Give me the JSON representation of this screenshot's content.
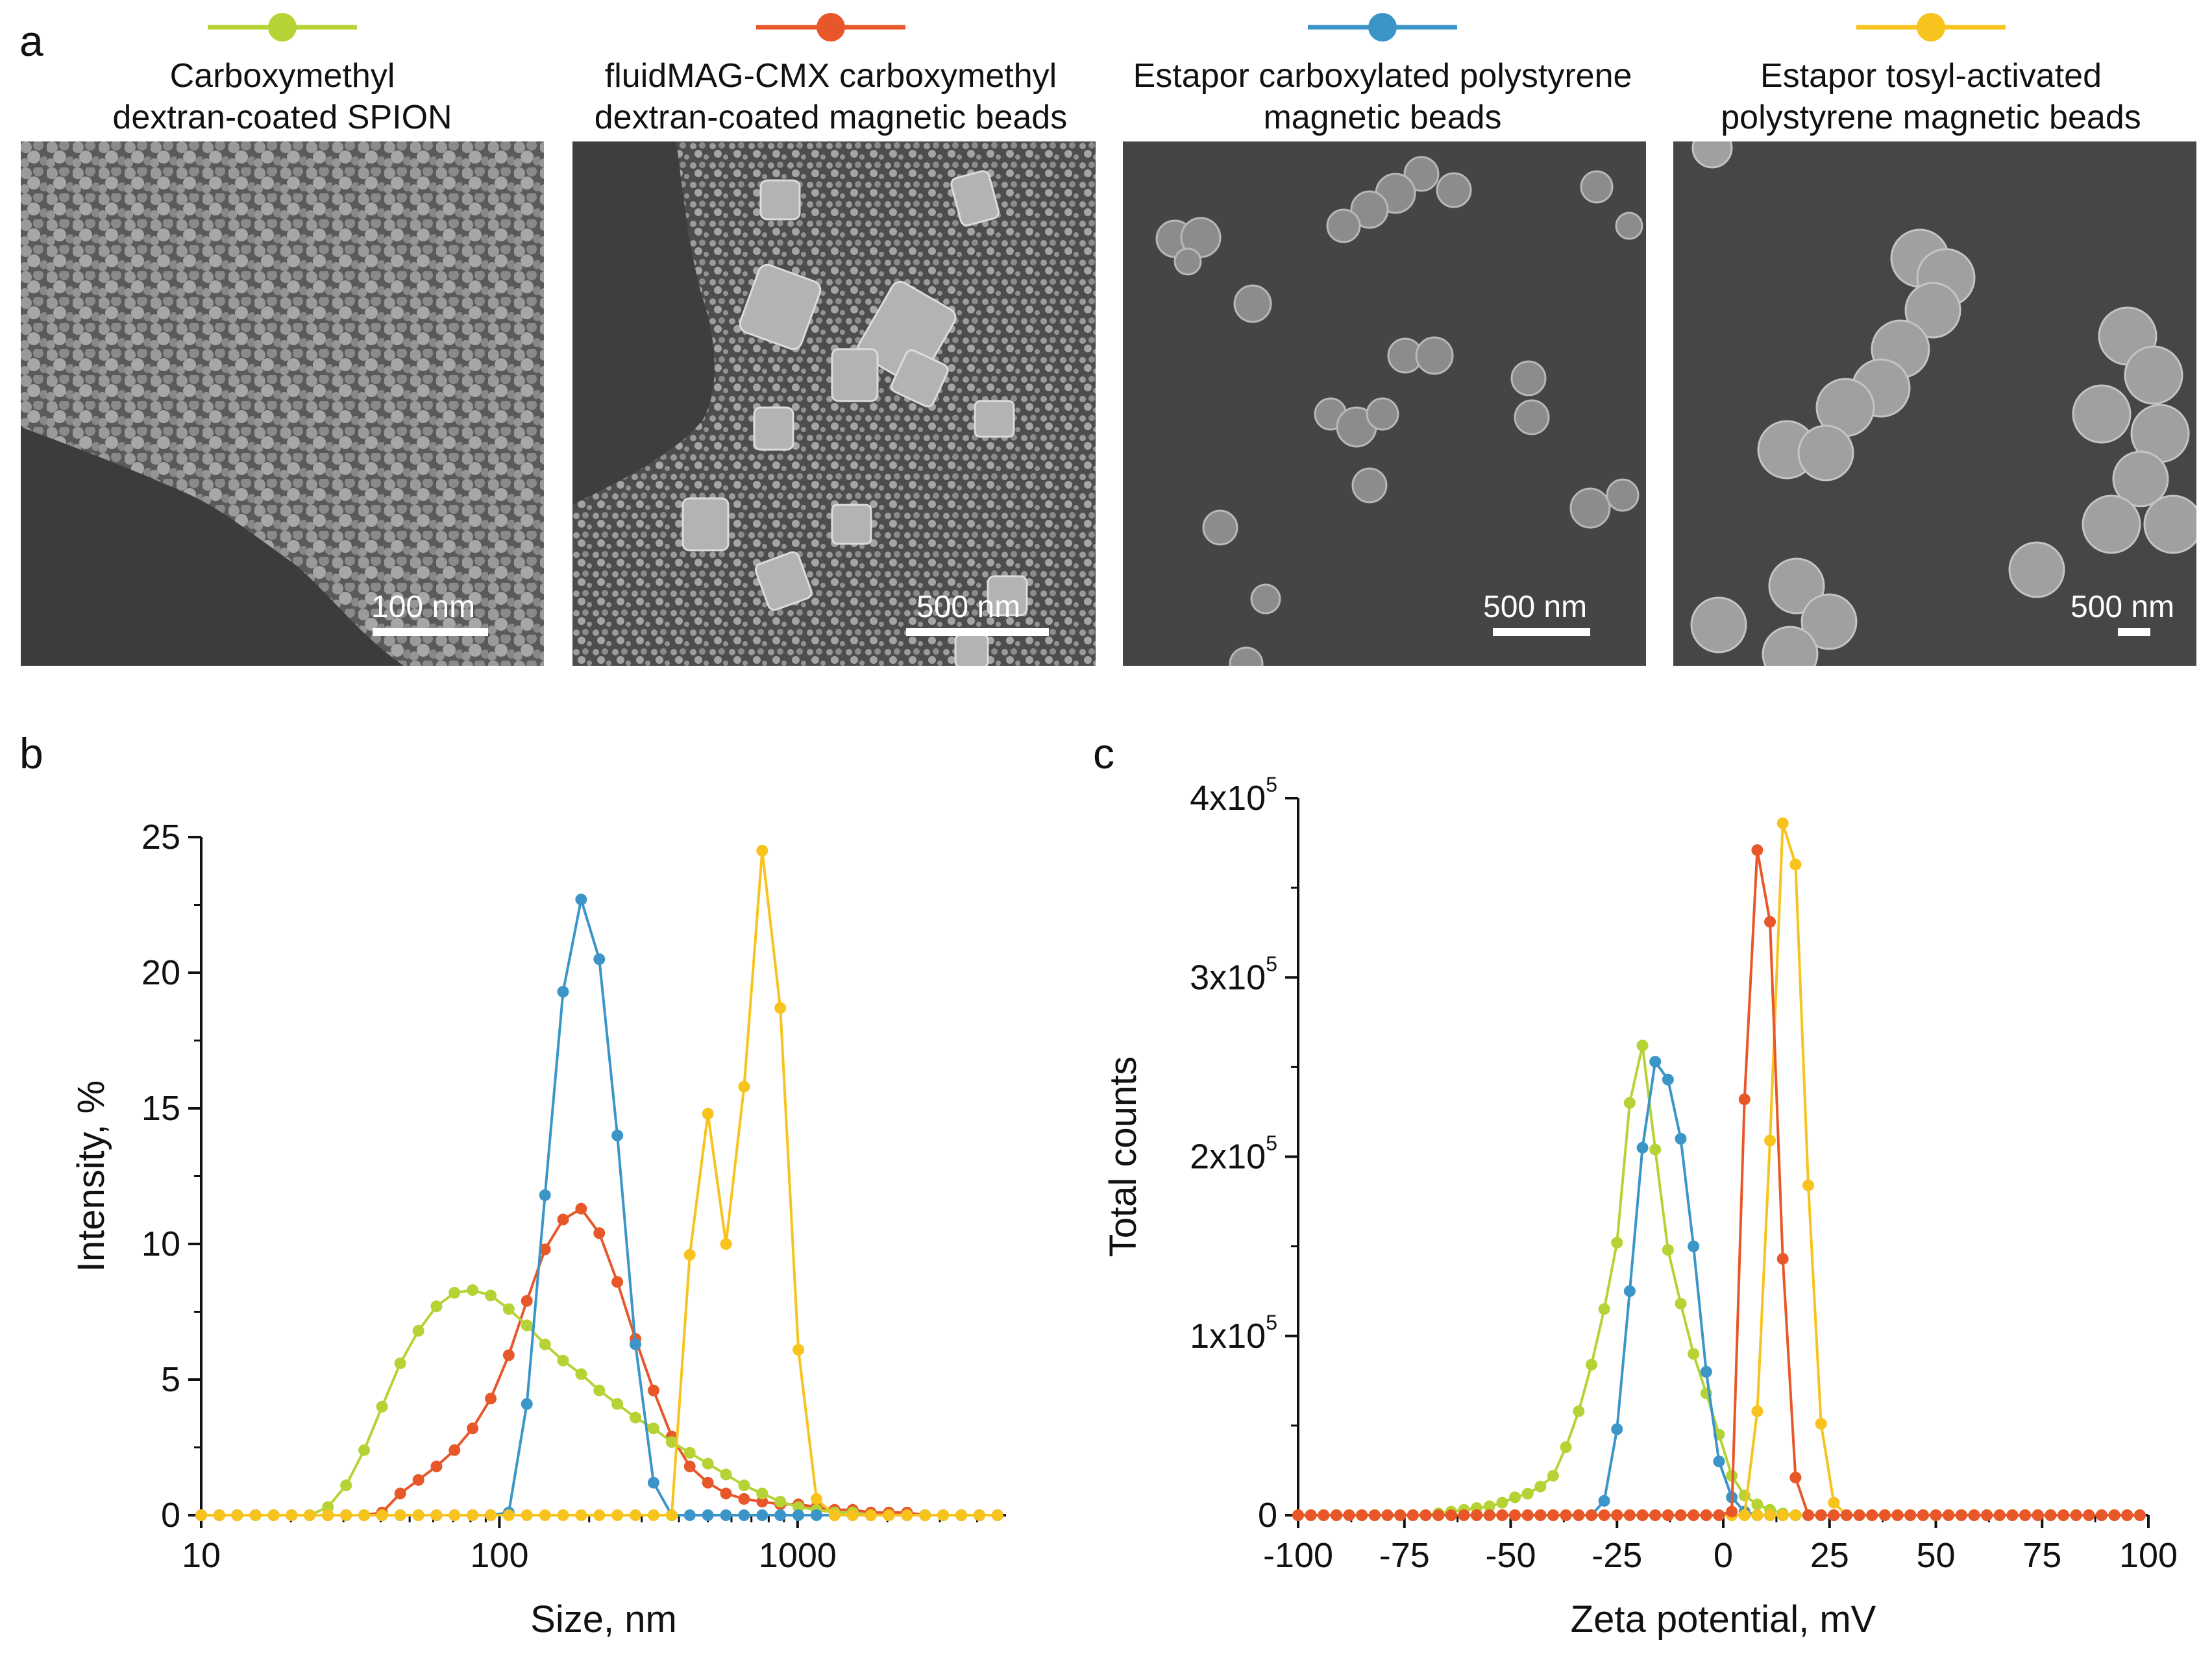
{
  "panels": {
    "a": "a",
    "b": "b",
    "c": "c"
  },
  "colors": {
    "green": "#b5d334",
    "orange": "#e8572a",
    "blue": "#3c95c8",
    "yellow": "#f7c31c"
  },
  "legend": [
    {
      "line1": "Carboxymethyl",
      "line2": "dextran-coated SPION",
      "color": "#b5d334"
    },
    {
      "line1": "fluidMAG-CMX carboxymethyl",
      "line2": "dextran-coated magnetic beads",
      "color": "#e8572a"
    },
    {
      "line1": "Estapor carboxylated polystyrene",
      "line2": "magnetic beads",
      "color": "#3c95c8"
    },
    {
      "line1": "Estapor tosyl-activated",
      "line2": "polystyrene magnetic beads",
      "color": "#f7c31c"
    }
  ],
  "sem_images": [
    {
      "scale_label": "100 nm"
    },
    {
      "scale_label": "500 nm"
    },
    {
      "scale_label": "500 nm"
    },
    {
      "scale_label": "500 nm"
    }
  ],
  "chart_data": [
    {
      "panel": "b",
      "type": "line",
      "xscale": "log",
      "xlabel": "Size, nm",
      "ylabel": "Intensity, %",
      "xlim": [
        10,
        5000
      ],
      "ylim": [
        0,
        25
      ],
      "xticks": [
        10,
        100,
        1000
      ],
      "xtick_labels": [
        "10",
        "100",
        "1000"
      ],
      "yticks": [
        0,
        5,
        10,
        15,
        20,
        25
      ],
      "ytick_labels": [
        "0",
        "5",
        "10",
        "15",
        "20",
        "25"
      ],
      "x": [
        10,
        11.5,
        13.2,
        15.2,
        17.5,
        20.1,
        23.1,
        26.6,
        30.6,
        35.2,
        40.4,
        46.5,
        53.5,
        61.5,
        70.7,
        81.3,
        93.5,
        107.5,
        123.6,
        142.2,
        163.5,
        188.0,
        216.2,
        248.6,
        285.9,
        328.8,
        378.2,
        434.9,
        500.2,
        575.2,
        661.5,
        760.7,
        874.8,
        1006.0,
        1157.0,
        1330.0,
        1530.0,
        1760.0,
        2023.0,
        2327.0,
        2676.0,
        3077.0,
        3538.0,
        4069.0,
        4680.0
      ],
      "series": [
        {
          "name": "Carboxymethyl dextran-coated SPION",
          "color": "#b5d334",
          "values": [
            0,
            0,
            0,
            0,
            0,
            0,
            0,
            0.3,
            1.1,
            2.4,
            4.0,
            5.6,
            6.8,
            7.7,
            8.2,
            8.3,
            8.1,
            7.6,
            7.0,
            6.3,
            5.7,
            5.2,
            4.6,
            4.1,
            3.6,
            3.2,
            2.7,
            2.3,
            1.9,
            1.5,
            1.1,
            0.8,
            0.5,
            0.3,
            0.2,
            0.1,
            0.1,
            0,
            0,
            0,
            0,
            0,
            0,
            0,
            0
          ]
        },
        {
          "name": "fluidMAG-CMX carboxymethyl dextran-coated magnetic beads",
          "color": "#e8572a",
          "values": [
            0,
            0,
            0,
            0,
            0,
            0,
            0,
            0,
            0,
            0,
            0.1,
            0.8,
            1.3,
            1.8,
            2.4,
            3.2,
            4.3,
            5.9,
            7.9,
            9.8,
            10.9,
            11.3,
            10.4,
            8.6,
            6.5,
            4.6,
            2.9,
            1.8,
            1.2,
            0.8,
            0.6,
            0.5,
            0.4,
            0.4,
            0.3,
            0.2,
            0.2,
            0.1,
            0.1,
            0.1,
            0,
            0,
            0,
            0,
            0
          ]
        },
        {
          "name": "Estapor carboxylated polystyrene magnetic beads",
          "color": "#3c95c8",
          "values": [
            0,
            0,
            0,
            0,
            0,
            0,
            0,
            0,
            0,
            0,
            0,
            0,
            0,
            0,
            0,
            0,
            0,
            0.1,
            4.1,
            11.8,
            19.3,
            22.7,
            20.5,
            14.0,
            6.3,
            1.2,
            0,
            0,
            0,
            0,
            0,
            0,
            0,
            0,
            0,
            0,
            0,
            0,
            0,
            0,
            0,
            0,
            0,
            0,
            0
          ]
        },
        {
          "name": "Estapor tosyl-activated polystyrene magnetic beads",
          "color": "#f7c31c",
          "values": [
            0,
            0,
            0,
            0,
            0,
            0,
            0,
            0,
            0,
            0,
            0,
            0,
            0,
            0,
            0,
            0,
            0,
            0,
            0,
            0,
            0,
            0,
            0,
            0,
            0,
            0,
            0,
            9.6,
            14.8,
            10.0,
            15.8,
            24.5,
            18.7,
            6.1,
            0.6,
            0,
            0,
            0,
            0,
            0,
            0,
            0,
            0,
            0,
            0
          ]
        }
      ]
    },
    {
      "panel": "c",
      "type": "line",
      "xlabel": "Zeta potential, mV",
      "ylabel": "Total counts",
      "xlim": [
        -100,
        100
      ],
      "ylim": [
        0,
        400000
      ],
      "xticks": [
        -100,
        -75,
        -50,
        -25,
        0,
        25,
        50,
        75,
        100
      ],
      "xtick_labels": [
        "-100",
        "-75",
        "-50",
        "-25",
        "0",
        "25",
        "50",
        "75",
        "100"
      ],
      "yticks": [
        0,
        100000,
        200000,
        300000,
        400000
      ],
      "ytick_labels": [
        {
          "base": "0",
          "exp": ""
        },
        {
          "base": "1x10",
          "exp": "5"
        },
        {
          "base": "2x10",
          "exp": "5"
        },
        {
          "base": "3x10",
          "exp": "5"
        },
        {
          "base": "4x10",
          "exp": "5"
        }
      ],
      "x": [
        -100,
        -97,
        -94,
        -91,
        -88,
        -85,
        -82,
        -79,
        -76,
        -73,
        -70,
        -67,
        -64,
        -61,
        -58,
        -55,
        -52,
        -49,
        -46,
        -43,
        -40,
        -37,
        -34,
        -31,
        -28,
        -25,
        -22,
        -19,
        -16,
        -13,
        -10,
        -7,
        -4,
        -1,
        2,
        5,
        8,
        11,
        14,
        17,
        20,
        23,
        26,
        29,
        32,
        35,
        38,
        41,
        44,
        47,
        50,
        53,
        56,
        59,
        62,
        65,
        68,
        71,
        74,
        77,
        80,
        83,
        86,
        89,
        92,
        95,
        98
      ],
      "series": [
        {
          "name": "Carboxymethyl dextran-coated SPION",
          "color": "#b5d334",
          "values": [
            0,
            0,
            0,
            0,
            0,
            0,
            0,
            0,
            0,
            0,
            0,
            1000,
            2000,
            3000,
            4000,
            5000,
            7000,
            10000,
            12000,
            16000,
            22000,
            38000,
            58000,
            84000,
            115000,
            152000,
            230000,
            262000,
            204000,
            148000,
            118000,
            90000,
            68000,
            45000,
            22000,
            11000,
            6000,
            3000,
            1000,
            0,
            0,
            0,
            0,
            0,
            0,
            0,
            0,
            0,
            0,
            0,
            0,
            0,
            0,
            0,
            0,
            0,
            0,
            0,
            0,
            0,
            0,
            0,
            0,
            0,
            0,
            0,
            0
          ]
        },
        {
          "name": "fluidMAG-CMX carboxymethyl dextran-coated magnetic beads",
          "color": "#e8572a",
          "values": [
            0,
            0,
            0,
            0,
            0,
            0,
            0,
            0,
            0,
            0,
            0,
            0,
            0,
            0,
            0,
            0,
            0,
            0,
            0,
            0,
            0,
            0,
            0,
            0,
            0,
            0,
            0,
            0,
            0,
            0,
            0,
            0,
            0,
            0,
            2000,
            232000,
            371000,
            331000,
            143000,
            21000,
            0,
            0,
            0,
            0,
            0,
            0,
            0,
            0,
            0,
            0,
            0,
            0,
            0,
            0,
            0,
            0,
            0,
            0,
            0,
            0,
            0,
            0,
            0,
            0,
            0,
            0,
            0
          ]
        },
        {
          "name": "Estapor carboxylated polystyrene magnetic beads",
          "color": "#3c95c8",
          "values": [
            0,
            0,
            0,
            0,
            0,
            0,
            0,
            0,
            0,
            0,
            0,
            0,
            0,
            0,
            0,
            0,
            0,
            0,
            0,
            0,
            0,
            0,
            0,
            0,
            8000,
            48000,
            125000,
            205000,
            253000,
            243000,
            210000,
            150000,
            80000,
            30000,
            10000,
            2000,
            0,
            0,
            0,
            0,
            0,
            0,
            0,
            0,
            0,
            0,
            0,
            0,
            0,
            0,
            0,
            0,
            0,
            0,
            0,
            0,
            0,
            0,
            0,
            0,
            0,
            0,
            0,
            0,
            0,
            0,
            0
          ]
        },
        {
          "name": "Estapor tosyl-activated polystyrene magnetic beads",
          "color": "#f7c31c",
          "values": [
            0,
            0,
            0,
            0,
            0,
            0,
            0,
            0,
            0,
            0,
            0,
            0,
            0,
            0,
            0,
            0,
            0,
            0,
            0,
            0,
            0,
            0,
            0,
            0,
            0,
            0,
            0,
            0,
            0,
            0,
            0,
            0,
            0,
            0,
            0,
            0,
            0,
            0,
            0,
            0,
            0,
            0,
            0,
            0,
            0,
            0,
            0,
            0,
            0,
            0,
            0,
            0,
            0,
            0,
            0,
            0,
            0,
            0,
            0,
            0,
            0,
            0,
            0,
            0,
            0,
            0,
            0
          ]
        },
        {
          "name": "Estapor tosyl-activated polystyrene magnetic beads (peak)",
          "color": "#f7c31c",
          "values": [
            0,
            0,
            0,
            0,
            0,
            0,
            0,
            0,
            0,
            0,
            0,
            0,
            0,
            0,
            0,
            0,
            0,
            0,
            0,
            0,
            0,
            0,
            0,
            0,
            0,
            0,
            0,
            0,
            0,
            0,
            0,
            0,
            0,
            0,
            0,
            0,
            58000,
            209000,
            386000,
            363000,
            184000,
            51000,
            7000,
            0,
            0,
            0,
            0,
            0,
            0,
            0,
            0,
            0,
            0,
            0,
            0,
            0,
            0,
            0,
            0,
            0,
            0,
            0,
            0,
            0,
            0,
            0,
            0
          ]
        }
      ]
    }
  ]
}
